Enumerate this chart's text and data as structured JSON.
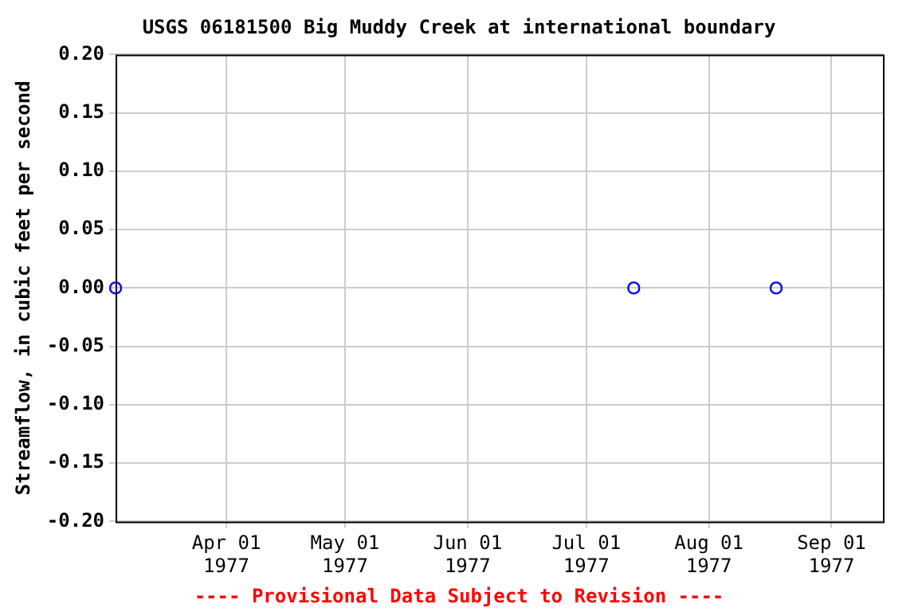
{
  "chart_data": {
    "type": "scatter",
    "title": "USGS 06181500 Big Muddy Creek at international boundary",
    "ylabel": "Streamflow, in cubic feet per second",
    "x": [
      "1977-03-04",
      "1977-07-13",
      "1977-08-18"
    ],
    "series": [
      {
        "color": "#0000ff",
        "values": [
          0,
          0,
          0
        ]
      }
    ],
    "xlim": [
      "1977-03-04",
      "1977-09-14"
    ],
    "xticks": [
      {
        "value": "1977-04-01",
        "label": "Apr 01 1977"
      },
      {
        "value": "1977-05-01",
        "label": "May 01 1977"
      },
      {
        "value": "1977-06-01",
        "label": "Jun 01 1977"
      },
      {
        "value": "1977-07-01",
        "label": "Jul 01 1977"
      },
      {
        "value": "1977-08-01",
        "label": "Aug 01 1977"
      },
      {
        "value": "1977-09-01",
        "label": "Sep 01 1977"
      }
    ],
    "ylim": [
      -0.2,
      0.2
    ],
    "yticks": [
      {
        "value": -0.2,
        "label": "-0.20"
      },
      {
        "value": -0.15,
        "label": "-0.15"
      },
      {
        "value": -0.1,
        "label": "-0.10"
      },
      {
        "value": -0.05,
        "label": "-0.05"
      },
      {
        "value": 0,
        "label": "0.00"
      },
      {
        "value": 0.05,
        "label": "0.05"
      },
      {
        "value": 0.1,
        "label": "0.10"
      },
      {
        "value": 0.15,
        "label": "0.15"
      },
      {
        "value": 0.2,
        "label": "0.20"
      }
    ],
    "grid": true,
    "marker": "circle",
    "legend": false,
    "annotations": [
      "---- Provisional Data Subject to Revision ----"
    ]
  }
}
